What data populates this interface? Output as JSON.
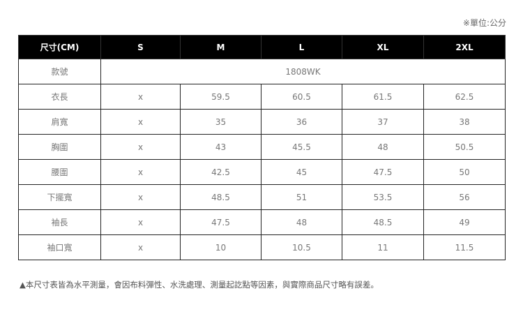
{
  "unit_note": "※單位:公分",
  "header": [
    "尺寸(CM)",
    "S",
    "M",
    "L",
    "XL",
    "2XL"
  ],
  "style_row": {
    "label": "款號",
    "value": "1808WK"
  },
  "rows": [
    {
      "label": "衣長",
      "values": [
        "x",
        "59.5",
        "60.5",
        "61.5",
        "62.5"
      ]
    },
    {
      "label": "肩寬",
      "values": [
        "x",
        "35",
        "36",
        "37",
        "38"
      ]
    },
    {
      "label": "胸圍",
      "values": [
        "x",
        "43",
        "45.5",
        "48",
        "50.5"
      ]
    },
    {
      "label": "腰圍",
      "values": [
        "x",
        "42.5",
        "45",
        "47.5",
        "50"
      ]
    },
    {
      "label": "下擺寬",
      "values": [
        "x",
        "48.5",
        "51",
        "53.5",
        "56"
      ]
    },
    {
      "label": "袖長",
      "values": [
        "x",
        "47.5",
        "48",
        "48.5",
        "49"
      ]
    },
    {
      "label": "袖口寬",
      "values": [
        "x",
        "10",
        "10.5",
        "11",
        "11.5"
      ]
    }
  ],
  "footnote": "▲本尺寸表皆為水平測量，會因布料彈性、水洗處理、測量起訖點等因素，與實際商品尺寸略有誤差。"
}
